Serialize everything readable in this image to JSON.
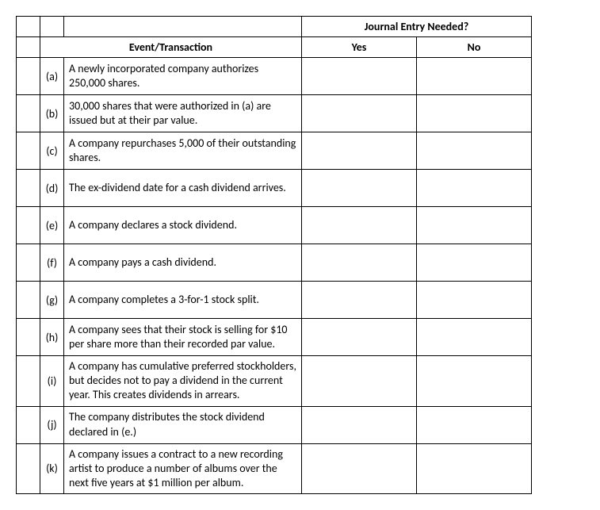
{
  "headers": {
    "journal_entry": "Journal Entry Needed?",
    "event": "Event/Transaction",
    "yes": "Yes",
    "no": "No"
  },
  "rows": [
    {
      "letter": "(a)",
      "event": "A newly incorporated company authorizes 250,000 shares."
    },
    {
      "letter": "(b)",
      "event": "30,000 shares that were authorized in (a) are issued but at their par value."
    },
    {
      "letter": "(c)",
      "event": "A company repurchases 5,000 of their outstanding shares."
    },
    {
      "letter": "(d)",
      "event": "The ex-dividend date for a cash dividend arrives."
    },
    {
      "letter": "(e)",
      "event": "A company declares a stock dividend."
    },
    {
      "letter": "(f)",
      "event": "A company pays a cash dividend."
    },
    {
      "letter": "(g)",
      "event": "A company completes a 3-for-1 stock split."
    },
    {
      "letter": "(h)",
      "event": "A company sees that their stock is selling for $10 per share more than their recorded par value."
    },
    {
      "letter": "(i)",
      "event": "A company has cumulative preferred stockholders, but decides not to pay a dividend in the current year. This creates dividends in arrears."
    },
    {
      "letter": "(j)",
      "event": "The company distributes the stock dividend declared in (e.)"
    },
    {
      "letter": "(k)",
      "event": "A company issues a contract to a new recording artist to produce a number of albums over the next five years at $1 million per album."
    }
  ],
  "min_row_height": 38
}
